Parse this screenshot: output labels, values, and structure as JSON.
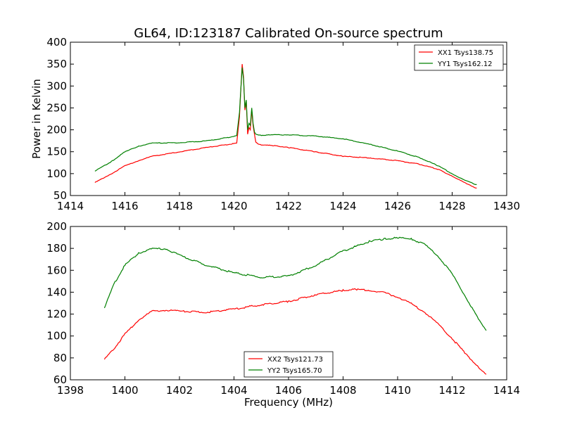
{
  "chart_data": [
    {
      "type": "line",
      "title": "GL64, ID:123187 Calibrated On-source spectrum",
      "xlabel": "",
      "ylabel": "Power in Kelvin",
      "xlim": [
        1414,
        1430
      ],
      "ylim": [
        50,
        400
      ],
      "xticks": [
        1414,
        1416,
        1418,
        1420,
        1422,
        1424,
        1426,
        1428,
        1430
      ],
      "yticks": [
        50,
        100,
        150,
        200,
        250,
        300,
        350,
        400
      ],
      "grid": false,
      "legend": "top-right",
      "series": [
        {
          "name": "XX1 Tsys138.75",
          "color": "#ff0000",
          "x": [
            1414.9,
            1415.5,
            1416.0,
            1416.5,
            1417.0,
            1418.0,
            1419.0,
            1419.8,
            1420.1,
            1420.2,
            1420.3,
            1420.35,
            1420.4,
            1420.45,
            1420.5,
            1420.55,
            1420.6,
            1420.65,
            1420.7,
            1420.75,
            1420.8,
            1420.9,
            1421.0,
            1421.5,
            1422.0,
            1423.0,
            1424.0,
            1425.0,
            1426.0,
            1426.8,
            1427.5,
            1428.0,
            1428.5,
            1428.9
          ],
          "y": [
            80,
            100,
            118,
            130,
            140,
            150,
            160,
            167,
            170,
            230,
            350,
            320,
            245,
            265,
            190,
            205,
            200,
            245,
            210,
            190,
            172,
            167,
            166,
            164,
            160,
            150,
            140,
            136,
            130,
            122,
            110,
            95,
            78,
            67
          ]
        },
        {
          "name": "YY1 Tsys162.12",
          "color": "#008000",
          "x": [
            1414.9,
            1415.5,
            1416.0,
            1416.5,
            1417.0,
            1418.0,
            1419.0,
            1419.8,
            1420.1,
            1420.2,
            1420.3,
            1420.35,
            1420.4,
            1420.45,
            1420.5,
            1420.55,
            1420.6,
            1420.65,
            1420.7,
            1420.75,
            1420.8,
            1420.9,
            1421.0,
            1421.5,
            1422.0,
            1423.0,
            1424.0,
            1425.0,
            1426.0,
            1426.8,
            1427.5,
            1428.0,
            1428.5,
            1428.9
          ],
          "y": [
            106,
            128,
            150,
            163,
            170,
            171,
            175,
            183,
            187,
            240,
            342,
            315,
            250,
            268,
            200,
            215,
            210,
            250,
            215,
            195,
            190,
            188,
            188,
            189,
            189,
            186,
            180,
            167,
            152,
            137,
            118,
            100,
            84,
            75
          ]
        }
      ]
    },
    {
      "type": "line",
      "title": "",
      "xlabel": "Frequency (MHz)",
      "ylabel": "",
      "xlim": [
        1398,
        1414
      ],
      "ylim": [
        60,
        200
      ],
      "xticks": [
        1398,
        1400,
        1402,
        1404,
        1406,
        1408,
        1410,
        1412,
        1414
      ],
      "yticks": [
        60,
        80,
        100,
        120,
        140,
        160,
        180,
        200
      ],
      "grid": false,
      "legend": "lower-center",
      "series": [
        {
          "name": "XX2 Tsys121.73",
          "color": "#ff0000",
          "x": [
            1399.25,
            1399.6,
            1400.0,
            1400.5,
            1401.0,
            1401.5,
            1402.0,
            1403.0,
            1404.0,
            1405.0,
            1406.0,
            1407.0,
            1408.0,
            1408.5,
            1409.0,
            1409.5,
            1410.0,
            1410.5,
            1411.0,
            1411.5,
            1412.0,
            1412.5,
            1413.0,
            1413.25
          ],
          "y": [
            79,
            89,
            102,
            115,
            123,
            124,
            123,
            122,
            125,
            129,
            132,
            138,
            142,
            143,
            142,
            140,
            136,
            130,
            122,
            111,
            98,
            84,
            71,
            65
          ]
        },
        {
          "name": "YY2 Tsys165.70",
          "color": "#008000",
          "x": [
            1399.25,
            1399.6,
            1400.0,
            1400.5,
            1401.0,
            1401.5,
            1402.0,
            1403.0,
            1404.0,
            1405.0,
            1406.0,
            1407.0,
            1408.0,
            1409.0,
            1409.5,
            1410.0,
            1410.5,
            1411.0,
            1411.5,
            1412.0,
            1412.5,
            1413.0,
            1413.25
          ],
          "y": [
            126,
            148,
            165,
            176,
            180,
            180,
            174,
            165,
            158,
            154,
            155,
            165,
            178,
            187,
            189,
            190,
            189,
            184,
            173,
            157,
            136,
            114,
            105
          ]
        }
      ]
    }
  ]
}
